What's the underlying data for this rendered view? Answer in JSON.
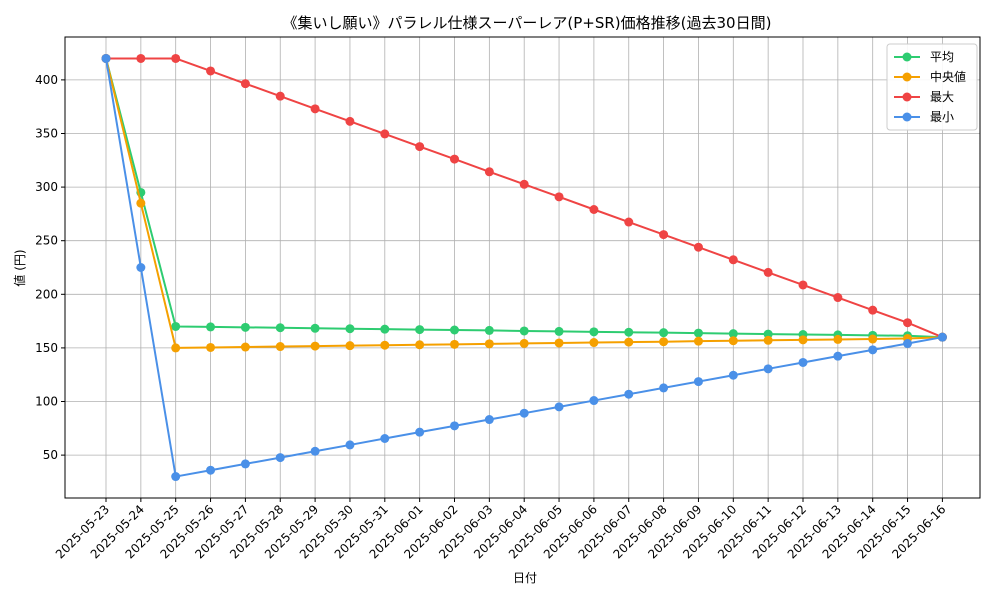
{
  "chart_data": {
    "type": "line",
    "title": "《集いし願い》パラレル仕様スーパーレア(P+SR)価格推移(過去30日間)",
    "xlabel": "日付",
    "ylabel": "値 (円)",
    "categories": [
      "2025-05-23",
      "2025-05-24",
      "2025-05-25",
      "2025-05-26",
      "2025-05-27",
      "2025-05-28",
      "2025-05-29",
      "2025-05-30",
      "2025-05-31",
      "2025-06-01",
      "2025-06-02",
      "2025-06-03",
      "2025-06-04",
      "2025-06-05",
      "2025-06-06",
      "2025-06-07",
      "2025-06-08",
      "2025-06-09",
      "2025-06-10",
      "2025-06-11",
      "2025-06-12",
      "2025-06-13",
      "2025-06-14",
      "2025-06-15",
      "2025-06-16"
    ],
    "ylim": [
      10,
      440
    ],
    "yticks": [
      50,
      100,
      150,
      200,
      250,
      300,
      350,
      400
    ],
    "grid": true,
    "legend_position": "top-right",
    "series": [
      {
        "name": "平均",
        "color": "#2ecc71",
        "values": [
          420,
          295,
          170,
          169.6,
          169.2,
          168.8,
          168.3,
          167.9,
          167.5,
          167.1,
          166.7,
          166.3,
          165.8,
          165.4,
          165,
          164.6,
          164.2,
          163.8,
          163.3,
          162.9,
          162.5,
          162.1,
          161.7,
          161.3,
          160
        ]
      },
      {
        "name": "中央値",
        "color": "#f5a000",
        "values": [
          420,
          285,
          150,
          150.4,
          150.8,
          151.3,
          151.7,
          152.1,
          152.5,
          152.9,
          153.3,
          153.8,
          154.2,
          154.6,
          155,
          155.4,
          155.8,
          156.3,
          156.7,
          157.1,
          157.5,
          157.9,
          158.3,
          158.8,
          160
        ]
      },
      {
        "name": "最大",
        "color": "#ef4444",
        "values": [
          420,
          420,
          420,
          408.3,
          396.5,
          384.8,
          373,
          361.3,
          349.6,
          337.8,
          326.1,
          314.3,
          302.6,
          290.9,
          279.1,
          267.4,
          255.7,
          243.9,
          232.2,
          220.4,
          208.7,
          197,
          185.2,
          173.5,
          160
        ]
      },
      {
        "name": "最小",
        "color": "#4a90e8",
        "values": [
          420,
          225,
          30,
          35.9,
          41.8,
          47.7,
          53.6,
          59.5,
          65.5,
          71.4,
          77.3,
          83.2,
          89.1,
          95,
          100.9,
          106.8,
          112.7,
          118.6,
          124.5,
          130.5,
          136.4,
          142.3,
          148.2,
          154.1,
          160
        ]
      }
    ]
  }
}
